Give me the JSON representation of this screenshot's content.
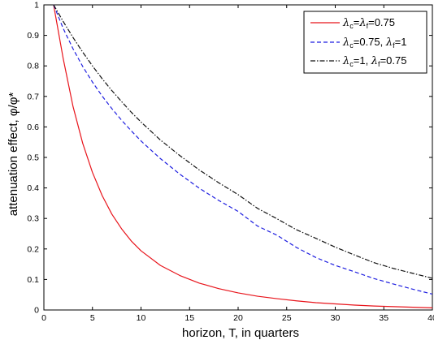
{
  "chart_data": {
    "type": "line",
    "xlabel": "horizon, T, in quarters",
    "ylabel": "attenuation effect, φ/φ*",
    "xlim": [
      0,
      40
    ],
    "ylim": [
      0,
      1
    ],
    "x_ticks": [
      "0",
      "5",
      "10",
      "15",
      "20",
      "25",
      "30",
      "35",
      "40"
    ],
    "y_ticks": [
      "0",
      "0.1",
      "0.2",
      "0.3",
      "0.4",
      "0.5",
      "0.6",
      "0.7",
      "0.8",
      "0.9",
      "1"
    ],
    "grid": false,
    "legend_position": "top-right",
    "series": [
      {
        "name": "λc=λf=0.75",
        "legend": {
          "l1": "λ",
          "s1": "c",
          "m1": "=",
          "l2": "λ",
          "s2": "f",
          "tail": "=0.75"
        },
        "color": "#e8141b",
        "style": "solid",
        "x": [
          1,
          2,
          3,
          4,
          5,
          6,
          7,
          8,
          9,
          10,
          12,
          14,
          16,
          18,
          20,
          22,
          24,
          26,
          28,
          30,
          32,
          34,
          36,
          38,
          40
        ],
        "values": [
          1.0,
          0.822,
          0.667,
          0.546,
          0.451,
          0.375,
          0.314,
          0.266,
          0.226,
          0.194,
          0.146,
          0.113,
          0.088,
          0.07,
          0.056,
          0.045,
          0.037,
          0.03,
          0.024,
          0.02,
          0.016,
          0.013,
          0.011,
          0.009,
          0.007
        ]
      },
      {
        "name": "λc=0.75, λf=1",
        "legend": {
          "l1": "λ",
          "s1": "c",
          "m1": "=0.75, ",
          "l2": "λ",
          "s2": "f",
          "tail": "=1"
        },
        "color": "#1f1fe0",
        "style": "dashed",
        "x": [
          1,
          2,
          3,
          4,
          5,
          6,
          7,
          8,
          9,
          10,
          12,
          14,
          16,
          18,
          20,
          22,
          24,
          26,
          28,
          30,
          32,
          34,
          36,
          38,
          40
        ],
        "values": [
          1.0,
          0.922,
          0.856,
          0.798,
          0.747,
          0.701,
          0.66,
          0.622,
          0.587,
          0.554,
          0.496,
          0.445,
          0.399,
          0.359,
          0.323,
          0.275,
          0.245,
          0.205,
          0.172,
          0.146,
          0.125,
          0.103,
          0.085,
          0.068,
          0.052
        ]
      },
      {
        "name": "λc=1, λf=0.75",
        "legend": {
          "l1": "λ",
          "s1": "c",
          "m1": "=1, ",
          "l2": "λ",
          "s2": "f",
          "tail": "=0.75"
        },
        "color": "#111111",
        "style": "dashdot",
        "x": [
          1,
          2,
          3,
          4,
          5,
          6,
          7,
          8,
          9,
          10,
          12,
          14,
          16,
          18,
          20,
          22,
          24,
          26,
          28,
          30,
          32,
          34,
          36,
          38,
          40
        ],
        "values": [
          1.0,
          0.945,
          0.893,
          0.845,
          0.8,
          0.758,
          0.719,
          0.683,
          0.648,
          0.616,
          0.557,
          0.506,
          0.459,
          0.417,
          0.378,
          0.333,
          0.299,
          0.263,
          0.235,
          0.206,
          0.18,
          0.155,
          0.136,
          0.12,
          0.104
        ]
      }
    ]
  }
}
